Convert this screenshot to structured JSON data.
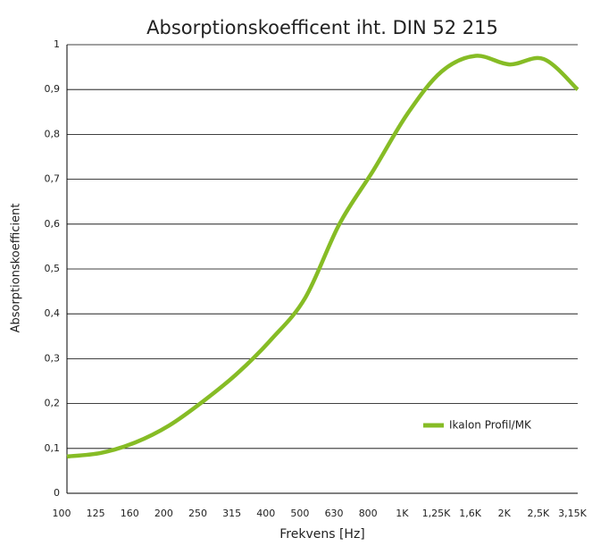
{
  "chart_data": {
    "type": "line",
    "title": "Absorptionskoefficent iht. DIN 52 215",
    "xlabel": "Frekvens [Hz]",
    "ylabel": "Absorptionskoefficient",
    "categories": [
      "100",
      "125",
      "160",
      "200",
      "250",
      "315",
      "400",
      "500",
      "630",
      "800",
      "1K",
      "1,25K",
      "1,6K",
      "2K",
      "2,5K",
      "3,15K"
    ],
    "series": [
      {
        "name": "Ikalon Profil/MK",
        "color": "#86bc25",
        "values": [
          0.082,
          0.09,
          0.113,
          0.151,
          0.205,
          0.267,
          0.343,
          0.436,
          0.6,
          0.72,
          0.846,
          0.94,
          0.975,
          0.956,
          0.968,
          0.9
        ]
      }
    ],
    "ylim": [
      0,
      1
    ],
    "yticks": [
      0,
      {
        "value": 0.1,
        "label": "0,1"
      },
      {
        "value": 0.2,
        "label": "0,2"
      },
      {
        "value": 0.3,
        "label": "0,3"
      },
      {
        "value": 0.4,
        "label": "0,4"
      },
      {
        "value": 0.5,
        "label": "0,5"
      },
      {
        "value": 0.6,
        "label": "0,6"
      },
      {
        "value": 0.7,
        "label": "0,7"
      },
      {
        "value": 0.8,
        "label": "0,8"
      },
      {
        "value": 0.9,
        "label": "0,9"
      },
      1
    ],
    "grid": true,
    "legend": "lower right"
  }
}
